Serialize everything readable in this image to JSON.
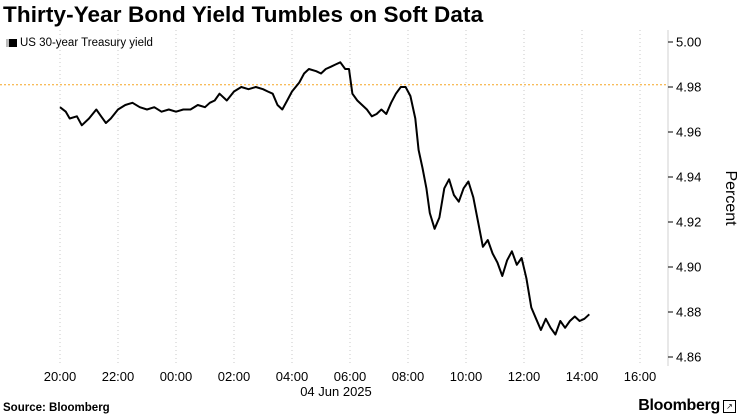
{
  "header": {
    "title": "Thirty-Year Bond Yield Tumbles on Soft Data"
  },
  "legend": {
    "label": "US 30-year Treasury yield"
  },
  "footer": {
    "source": "Source: Bloomberg",
    "brand": "Bloomberg"
  },
  "colors": {
    "line": "#000000",
    "reference_line": "#f5a623",
    "grid": "#c8c8c8",
    "background": "#ffffff"
  },
  "chart_data": {
    "type": "line",
    "title": "Thirty-Year Bond Yield Tumbles on Soft Data",
    "ylabel": "Percent",
    "xlabel": "",
    "date_label": "04 Jun 2025",
    "ylim": [
      4.86,
      5.0
    ],
    "xlim": [
      "19:30",
      "16:45"
    ],
    "y_ticks": [
      "5.00",
      "4.98",
      "4.96",
      "4.94",
      "4.92",
      "4.90",
      "4.88",
      "4.86"
    ],
    "x_ticks": [
      "20:00",
      "22:00",
      "00:00",
      "02:00",
      "04:00",
      "06:00",
      "08:00",
      "10:00",
      "12:00",
      "14:00",
      "16:00"
    ],
    "reference_line": {
      "y": 4.981,
      "style": "dotted"
    },
    "grid": "vertical dotted",
    "legend_position": "top-left",
    "series": [
      {
        "name": "US 30-year Treasury yield",
        "points": [
          [
            "20:00",
            4.971
          ],
          [
            "20:12",
            4.969
          ],
          [
            "20:20",
            4.966
          ],
          [
            "20:35",
            4.967
          ],
          [
            "20:45",
            4.963
          ],
          [
            "21:00",
            4.966
          ],
          [
            "21:15",
            4.97
          ],
          [
            "21:25",
            4.967
          ],
          [
            "21:35",
            4.964
          ],
          [
            "21:45",
            4.966
          ],
          [
            "22:00",
            4.97
          ],
          [
            "22:15",
            4.972
          ],
          [
            "22:30",
            4.973
          ],
          [
            "22:45",
            4.971
          ],
          [
            "23:00",
            4.97
          ],
          [
            "23:15",
            4.971
          ],
          [
            "23:30",
            4.969
          ],
          [
            "23:45",
            4.97
          ],
          [
            "00:00",
            4.969
          ],
          [
            "00:15",
            4.97
          ],
          [
            "00:30",
            4.97
          ],
          [
            "00:45",
            4.972
          ],
          [
            "01:00",
            4.971
          ],
          [
            "01:10",
            4.973
          ],
          [
            "01:20",
            4.974
          ],
          [
            "01:30",
            4.977
          ],
          [
            "01:45",
            4.974
          ],
          [
            "02:00",
            4.978
          ],
          [
            "02:15",
            4.98
          ],
          [
            "02:30",
            4.979
          ],
          [
            "02:45",
            4.98
          ],
          [
            "03:00",
            4.979
          ],
          [
            "03:10",
            4.978
          ],
          [
            "03:20",
            4.977
          ],
          [
            "03:30",
            4.972
          ],
          [
            "03:40",
            4.97
          ],
          [
            "03:50",
            4.974
          ],
          [
            "04:00",
            4.978
          ],
          [
            "04:15",
            4.982
          ],
          [
            "04:25",
            4.986
          ],
          [
            "04:35",
            4.988
          ],
          [
            "04:50",
            4.987
          ],
          [
            "05:00",
            4.986
          ],
          [
            "05:10",
            4.988
          ],
          [
            "05:20",
            4.989
          ],
          [
            "05:30",
            4.99
          ],
          [
            "05:40",
            4.991
          ],
          [
            "05:50",
            4.988
          ],
          [
            "05:58",
            4.988
          ],
          [
            "06:05",
            4.977
          ],
          [
            "06:15",
            4.974
          ],
          [
            "06:25",
            4.972
          ],
          [
            "06:35",
            4.97
          ],
          [
            "06:45",
            4.967
          ],
          [
            "06:55",
            4.968
          ],
          [
            "07:05",
            4.97
          ],
          [
            "07:15",
            4.968
          ],
          [
            "07:25",
            4.973
          ],
          [
            "07:35",
            4.977
          ],
          [
            "07:45",
            4.98
          ],
          [
            "07:55",
            4.98
          ],
          [
            "08:05",
            4.976
          ],
          [
            "08:15",
            4.966
          ],
          [
            "08:22",
            4.952
          ],
          [
            "08:30",
            4.944
          ],
          [
            "08:38",
            4.935
          ],
          [
            "08:45",
            4.924
          ],
          [
            "08:55",
            4.917
          ],
          [
            "09:05",
            4.922
          ],
          [
            "09:15",
            4.935
          ],
          [
            "09:25",
            4.939
          ],
          [
            "09:35",
            4.932
          ],
          [
            "09:45",
            4.929
          ],
          [
            "09:55",
            4.935
          ],
          [
            "10:05",
            4.938
          ],
          [
            "10:15",
            4.931
          ],
          [
            "10:25",
            4.92
          ],
          [
            "10:35",
            4.909
          ],
          [
            "10:45",
            4.912
          ],
          [
            "10:55",
            4.906
          ],
          [
            "11:05",
            4.902
          ],
          [
            "11:15",
            4.896
          ],
          [
            "11:25",
            4.903
          ],
          [
            "11:35",
            4.907
          ],
          [
            "11:45",
            4.901
          ],
          [
            "11:55",
            4.904
          ],
          [
            "12:05",
            4.895
          ],
          [
            "12:15",
            4.882
          ],
          [
            "12:25",
            4.877
          ],
          [
            "12:35",
            4.872
          ],
          [
            "12:45",
            4.877
          ],
          [
            "12:55",
            4.873
          ],
          [
            "13:05",
            4.87
          ],
          [
            "13:15",
            4.876
          ],
          [
            "13:25",
            4.873
          ],
          [
            "13:35",
            4.876
          ],
          [
            "13:45",
            4.878
          ],
          [
            "13:55",
            4.876
          ],
          [
            "14:05",
            4.877
          ],
          [
            "14:15",
            4.879
          ]
        ]
      }
    ]
  }
}
